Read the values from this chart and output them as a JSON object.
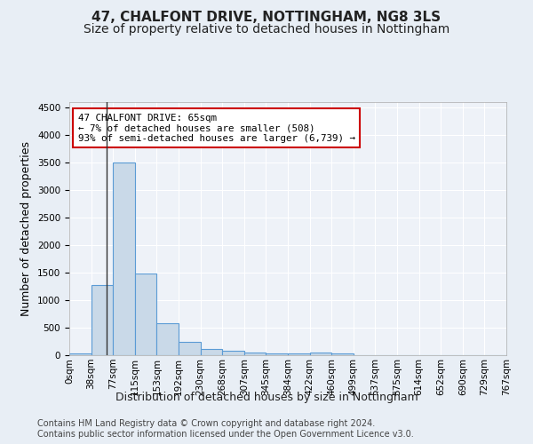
{
  "title": "47, CHALFONT DRIVE, NOTTINGHAM, NG8 3LS",
  "subtitle": "Size of property relative to detached houses in Nottingham",
  "xlabel": "Distribution of detached houses by size in Nottingham",
  "ylabel": "Number of detached properties",
  "bin_labels": [
    "0sqm",
    "38sqm",
    "77sqm",
    "115sqm",
    "153sqm",
    "192sqm",
    "230sqm",
    "268sqm",
    "307sqm",
    "345sqm",
    "384sqm",
    "422sqm",
    "460sqm",
    "499sqm",
    "537sqm",
    "575sqm",
    "614sqm",
    "652sqm",
    "690sqm",
    "729sqm",
    "767sqm"
  ],
  "bar_heights": [
    30,
    1270,
    3500,
    1480,
    580,
    240,
    115,
    80,
    55,
    30,
    30,
    55,
    40,
    0,
    0,
    0,
    0,
    0,
    0,
    0
  ],
  "bar_color": "#c9d9e8",
  "bar_edge_color": "#5b9bd5",
  "annotation_text": "47 CHALFONT DRIVE: 65sqm\n← 7% of detached houses are smaller (508)\n93% of semi-detached houses are larger (6,739) →",
  "annotation_box_color": "#ffffff",
  "annotation_edge_color": "#cc0000",
  "ylim": [
    0,
    4600
  ],
  "yticks": [
    0,
    500,
    1000,
    1500,
    2000,
    2500,
    3000,
    3500,
    4000,
    4500
  ],
  "footer": "Contains HM Land Registry data © Crown copyright and database right 2024.\nContains public sector information licensed under the Open Government Licence v3.0.",
  "bg_color": "#e8eef5",
  "plot_bg_color": "#eef2f8",
  "grid_color": "#ffffff",
  "title_fontsize": 11,
  "subtitle_fontsize": 10,
  "axis_label_fontsize": 9,
  "tick_fontsize": 7.5,
  "footer_fontsize": 7,
  "vline_position": 1.692
}
